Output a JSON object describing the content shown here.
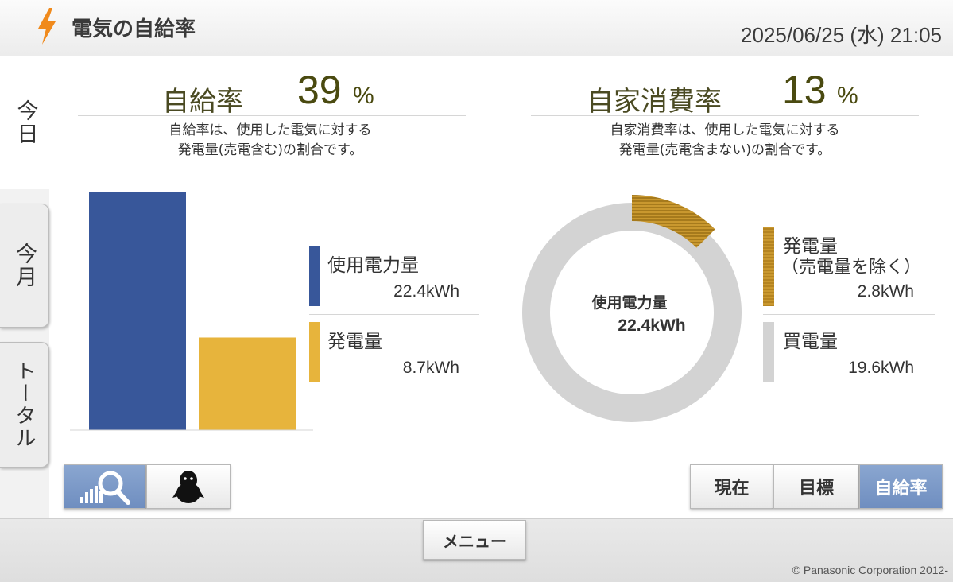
{
  "header": {
    "title": "電気の自給率",
    "datetime": "2025/06/25 (水) 21:05"
  },
  "tabs": [
    {
      "label": "今日",
      "active": true
    },
    {
      "label": "今月",
      "active": false
    },
    {
      "label": "トータル",
      "active": false
    }
  ],
  "self_sufficiency": {
    "label": "自給率",
    "value": "39",
    "unit": "%",
    "description_line1": "自給率は、使用した電気に対する",
    "description_line2": "発電量(売電含む)の割合です。",
    "legend": [
      {
        "label": "使用電力量",
        "value": "22.4kWh",
        "color": "#38579a"
      },
      {
        "label": "発電量",
        "value": "8.7kWh",
        "color": "#e7b43c"
      }
    ]
  },
  "self_consumption": {
    "label": "自家消費率",
    "value": "13",
    "unit": "%",
    "description_line1": "自家消費率は、使用した電気に対する",
    "description_line2": "発電量(売電含まない)の割合です。",
    "center_label": "使用電力量",
    "center_value": "22.4kWh",
    "legend": [
      {
        "label": "発電量",
        "sublabel": "（売電量を除く）",
        "value": "2.8kWh",
        "color": "#b58421"
      },
      {
        "label": "買電量",
        "value": "19.6kWh",
        "color": "#d3d3d3"
      }
    ]
  },
  "chart_data": [
    {
      "type": "bar",
      "categories": [
        "使用電力量",
        "発電量"
      ],
      "values": [
        22.4,
        8.7
      ],
      "colors": [
        "#38579a",
        "#e7b43c"
      ],
      "unit": "kWh"
    },
    {
      "type": "pie",
      "style": "donut",
      "categories": [
        "発電量（売電量を除く）",
        "買電量"
      ],
      "values": [
        2.8,
        19.6
      ],
      "colors": [
        "#b58421",
        "#d3d3d3"
      ],
      "unit": "kWh"
    }
  ],
  "toolbar": {
    "left_buttons": [
      {
        "icon": "graph-search-icon",
        "selected": true
      },
      {
        "icon": "penguin-icon",
        "selected": false
      }
    ],
    "right_buttons": [
      {
        "label": "現在",
        "selected": false
      },
      {
        "label": "目標",
        "selected": false
      },
      {
        "label": "自給率",
        "selected": true
      }
    ],
    "menu_label": "メニュー"
  },
  "footer": {
    "copyright": "© Panasonic Corporation 2012-"
  },
  "colors": {
    "accent_blue": "#38579a",
    "accent_yellow": "#e7b43c",
    "accent_brown": "#b58421",
    "value_olive": "#4a4a10"
  }
}
